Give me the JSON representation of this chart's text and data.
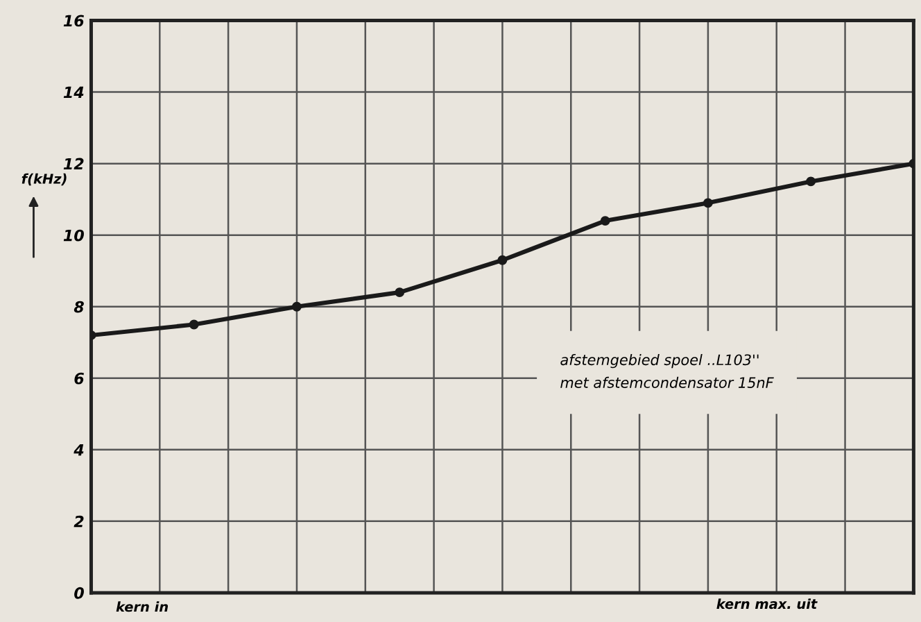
{
  "chart_data": {
    "type": "line",
    "categories": [
      null,
      null,
      null,
      null,
      null,
      null,
      null,
      null,
      null
    ],
    "series": [
      {
        "color": "#1a1a1a",
        "values": [
          7.2,
          7.5,
          8.0,
          8.4,
          9.3,
          10.4,
          10.9,
          11.5,
          12.0
        ]
      }
    ],
    "ylabel": "f(kHz)",
    "ylim": [
      0,
      16
    ],
    "yticks": [
      0,
      2,
      4,
      6,
      8,
      10,
      12,
      14,
      16
    ],
    "grid": true,
    "marker": "circle",
    "line_style": "solid",
    "tick_labels": "y",
    "annotations": [
      "afstemgebied spoel ..L103''\nmet afstemcondensator 15nF",
      "kern in",
      "kern max. uit"
    ]
  }
}
